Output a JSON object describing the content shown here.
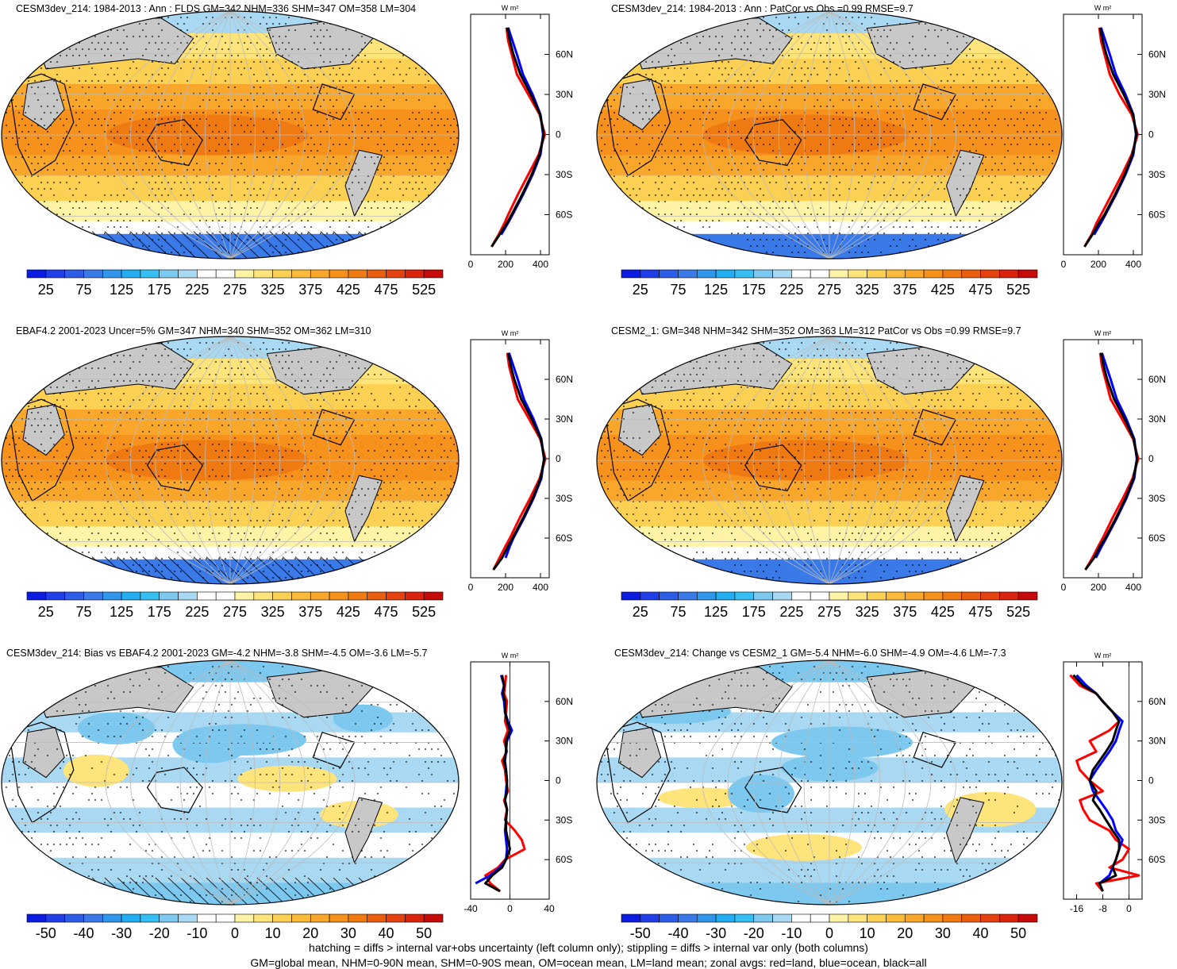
{
  "palettes": {
    "abs": [
      "#0b1be0",
      "#1f3ee8",
      "#2d5ce6",
      "#3a7ae8",
      "#2f96ec",
      "#22aef0",
      "#35bff2",
      "#7dc8ee",
      "#a9d8f2",
      "#ffffff",
      "#ffffff",
      "#fff3a6",
      "#fee47a",
      "#fcd052",
      "#fbbb3a",
      "#f9a72a",
      "#f6921c",
      "#f07a12",
      "#ea5e10",
      "#e4420e",
      "#d9230c",
      "#c50a0a"
    ],
    "diff": [
      "#0b1be0",
      "#1f3ee8",
      "#2d5ce6",
      "#3a7ae8",
      "#2f96ec",
      "#22aef0",
      "#35bff2",
      "#7dc8ee",
      "#a9d8f2",
      "#ffffff",
      "#ffffff",
      "#fff3a6",
      "#fee47a",
      "#fcd052",
      "#fbbb3a",
      "#f9a72a",
      "#f6921c",
      "#f07a12",
      "#ea5e10",
      "#e4420e",
      "#d9230c",
      "#c50a0a"
    ],
    "land_gray": "#c8c8c8",
    "coast": "#000000",
    "line_land": "#ff0000",
    "line_ocean": "#0000ff",
    "line_all": "#000000"
  },
  "colorbar_labels": {
    "abs": [
      "25",
      "75",
      "125",
      "175",
      "225",
      "275",
      "325",
      "375",
      "425",
      "475",
      "525"
    ],
    "diff": [
      "-50",
      "-40",
      "-30",
      "-20",
      "-10",
      "0",
      "10",
      "20",
      "30",
      "40",
      "50"
    ]
  },
  "profile_labels": {
    "units": "W m²",
    "lat": [
      "60N",
      "30N",
      "0",
      "30S",
      "60S"
    ]
  },
  "panels": [
    {
      "title": "CESM3dev_214: 1984-2013 : Ann : FLDS GM=342 NHM=336 SHM=347 OM=358 LM=304",
      "scale": "abs",
      "xticks": [
        "0",
        "200",
        "400"
      ],
      "hatch": true
    },
    {
      "title": "CESM3dev_214: 1984-2013 : Ann : PatCor vs Obs =0.99 RMSE=9.7",
      "scale": "abs",
      "xticks": [
        "0",
        "200",
        "400"
      ],
      "hatch": false
    },
    {
      "title": "EBAF4.2 2001-2023 Uncer=5% GM=347 NHM=340 SHM=352 OM=362 LM=310",
      "scale": "abs",
      "xticks": [
        "0",
        "200",
        "400"
      ],
      "hatch": true
    },
    {
      "title": "CESM2_1: GM=348 NHM=342 SHM=352 OM=363 LM=312 PatCor vs Obs =0.99 RMSE=9.7",
      "scale": "abs",
      "xticks": [
        "0",
        "200",
        "400"
      ],
      "hatch": false
    },
    {
      "title": "CESM3dev_214: Bias vs EBAF4.2 2001-2023 GM=-4.2 NHM=-3.8 SHM=-4.5 OM=-3.6 LM=-5.7",
      "scale": "diff",
      "xticks": [
        "-40",
        "0",
        "40"
      ],
      "hatch": true
    },
    {
      "title": "CESM3dev_214: Change vs CESM2_1 GM=-5.4 NHM=-6.0 SHM=-4.9 OM=-4.6 LM=-7.3",
      "scale": "diff",
      "xticks": [
        "-16",
        "-8",
        "0"
      ],
      "hatch": false
    }
  ],
  "chart_data": [
    {
      "type": "line",
      "title": "CESM3dev_214: 1984-2013 : Ann : FLDS GM=342 NHM=336 SHM=347 OM=358 LM=304",
      "xlim": [
        0,
        450
      ],
      "ylim": [
        -90,
        90
      ],
      "lat": [
        -84,
        -75,
        -66,
        -60,
        -45,
        -30,
        -15,
        0,
        15,
        30,
        45,
        60,
        70,
        80
      ],
      "series": [
        {
          "name": "land",
          "color": "#ff0000",
          "values": [
            120,
            160,
            195,
            215,
            270,
            330,
            390,
            425,
            395,
            330,
            265,
            235,
            215,
            205
          ]
        },
        {
          "name": "ocean",
          "color": "#0000ff",
          "values": [
            null,
            175,
            215,
            240,
            300,
            355,
            400,
            415,
            400,
            355,
            300,
            265,
            240,
            215
          ]
        },
        {
          "name": "all",
          "color": "#000000",
          "values": [
            120,
            165,
            210,
            235,
            295,
            350,
            395,
            418,
            398,
            345,
            285,
            245,
            225,
            210
          ]
        }
      ]
    },
    {
      "type": "line",
      "title": "CESM3dev_214: 1984-2013 : Ann : PatCor vs Obs =0.99 RMSE=9.7",
      "xlim": [
        0,
        450
      ],
      "ylim": [
        -90,
        90
      ],
      "lat": [
        -84,
        -75,
        -66,
        -60,
        -45,
        -30,
        -15,
        0,
        15,
        30,
        45,
        60,
        70,
        80
      ],
      "series": [
        {
          "name": "land",
          "color": "#ff0000",
          "values": [
            120,
            160,
            190,
            215,
            275,
            335,
            390,
            425,
            390,
            320,
            265,
            235,
            215,
            205
          ]
        },
        {
          "name": "ocean",
          "color": "#0000ff",
          "values": [
            null,
            175,
            215,
            240,
            300,
            355,
            400,
            415,
            400,
            355,
            300,
            265,
            240,
            215
          ]
        },
        {
          "name": "all",
          "color": "#000000",
          "values": [
            120,
            165,
            205,
            235,
            295,
            350,
            395,
            418,
            398,
            345,
            285,
            245,
            225,
            210
          ]
        }
      ]
    },
    {
      "type": "line",
      "title": "EBAF4.2 2001-2023 Uncer=5% GM=347 NHM=340 SHM=352 OM=362 LM=310",
      "xlim": [
        0,
        450
      ],
      "ylim": [
        -90,
        90
      ],
      "lat": [
        -84,
        -75,
        -66,
        -60,
        -45,
        -30,
        -15,
        0,
        15,
        30,
        45,
        60,
        70,
        80
      ],
      "series": [
        {
          "name": "land",
          "color": "#ff0000",
          "values": [
            130,
            165,
            200,
            225,
            280,
            340,
            395,
            428,
            398,
            335,
            270,
            240,
            220,
            210
          ]
        },
        {
          "name": "ocean",
          "color": "#0000ff",
          "values": [
            null,
            200,
            225,
            245,
            305,
            360,
            405,
            420,
            405,
            360,
            305,
            270,
            245,
            220
          ]
        },
        {
          "name": "all",
          "color": "#000000",
          "values": [
            130,
            180,
            215,
            240,
            300,
            355,
            400,
            422,
            402,
            350,
            290,
            250,
            230,
            215
          ]
        }
      ]
    },
    {
      "type": "line",
      "title": "CESM2_1: GM=348 NHM=342 SHM=352 OM=363 LM=312 PatCor vs Obs =0.99 RMSE=9.7",
      "xlim": [
        0,
        450
      ],
      "ylim": [
        -90,
        90
      ],
      "lat": [
        -84,
        -75,
        -66,
        -60,
        -45,
        -30,
        -15,
        0,
        15,
        30,
        45,
        60,
        70,
        80
      ],
      "series": [
        {
          "name": "land",
          "color": "#ff0000",
          "values": [
            125,
            165,
            200,
            225,
            280,
            340,
            395,
            428,
            398,
            335,
            270,
            240,
            220,
            210
          ]
        },
        {
          "name": "ocean",
          "color": "#0000ff",
          "values": [
            null,
            185,
            220,
            245,
            305,
            360,
            405,
            420,
            405,
            360,
            305,
            270,
            245,
            220
          ]
        },
        {
          "name": "all",
          "color": "#000000",
          "values": [
            125,
            175,
            210,
            240,
            300,
            355,
            400,
            422,
            402,
            350,
            290,
            250,
            230,
            215
          ]
        }
      ]
    },
    {
      "type": "line",
      "title": "CESM3dev_214: Bias vs EBAF4.2 2001-2023 GM=-4.2 NHM=-3.8 SHM=-4.5 OM=-3.6 LM=-5.7",
      "xlim": [
        -40,
        40
      ],
      "ylim": [
        -90,
        90
      ],
      "lat": [
        -84,
        -78,
        -72,
        -66,
        -60,
        -52,
        -45,
        -38,
        -30,
        -22,
        -15,
        -8,
        0,
        8,
        15,
        22,
        30,
        38,
        45,
        52,
        60,
        66,
        72,
        80
      ],
      "series": [
        {
          "name": "land",
          "color": "#ff0000",
          "values": [
            -10,
            -20,
            -25,
            -12,
            -5,
            15,
            12,
            5,
            -5,
            -3,
            -6,
            -2,
            -4,
            -5,
            -8,
            -3,
            -6,
            -2,
            -5,
            -4,
            -3,
            -6,
            -5,
            -4
          ]
        },
        {
          "name": "ocean",
          "color": "#0000ff",
          "values": [
            null,
            -35,
            -20,
            -10,
            -4,
            -3,
            -4,
            -5,
            -4,
            -3,
            -5,
            -4,
            -3,
            -4,
            -5,
            -4,
            -3,
            2,
            -2,
            -5,
            -6,
            -8,
            -6,
            -9
          ]
        },
        {
          "name": "all",
          "color": "#000000",
          "values": [
            -10,
            -25,
            -18,
            -8,
            -4,
            0,
            -2,
            -4,
            -4,
            -3,
            -5,
            -3,
            -3,
            -4,
            -6,
            -4,
            -4,
            0,
            -3,
            -5,
            -5,
            -7,
            -6,
            -8
          ]
        }
      ]
    },
    {
      "type": "line",
      "title": "CESM3dev_214: Change vs CESM2_1 GM=-5.4 NHM=-6.0 SHM=-4.9 OM=-4.6 LM=-7.3",
      "xlim": [
        -20,
        4
      ],
      "ylim": [
        -90,
        90
      ],
      "lat": [
        -84,
        -78,
        -72,
        -66,
        -60,
        -52,
        -45,
        -38,
        -30,
        -22,
        -15,
        -8,
        0,
        8,
        15,
        22,
        30,
        38,
        45,
        52,
        60,
        66,
        72,
        80
      ],
      "series": [
        {
          "name": "land",
          "color": "#ff0000",
          "values": [
            -8,
            -10,
            3,
            -6,
            -2,
            0,
            -4,
            -6,
            -12,
            -14,
            -15,
            -8,
            -12,
            -15,
            -16,
            -10,
            -12,
            -6,
            -3,
            -5,
            -8,
            -10,
            -15,
            -18
          ]
        },
        {
          "name": "ocean",
          "color": "#0000ff",
          "values": [
            null,
            -9,
            -6,
            -5,
            -4,
            -3,
            -2,
            -4,
            -5,
            -7,
            -9,
            -11,
            -12,
            -10,
            -8,
            -6,
            -4,
            -3,
            -2,
            -5,
            -8,
            -10,
            -13,
            -16
          ]
        },
        {
          "name": "all",
          "color": "#000000",
          "values": [
            -8,
            -9,
            -4,
            -5,
            -4,
            -3,
            -3,
            -5,
            -7,
            -9,
            -11,
            -10,
            -12,
            -11,
            -9,
            -7,
            -5,
            -4,
            -3,
            -5,
            -8,
            -10,
            -14,
            -17
          ]
        }
      ]
    }
  ],
  "footer": {
    "line1": "hatching = diffs > internal var+obs uncertainty (left column only); stippling = diffs > internal var only (both columns)",
    "line2": "GM=global mean, NHM=0-90N mean, SHM=0-90S mean, OM=ocean mean, LM=land mean; zonal avgs: red=land, blue=ocean, black=all"
  }
}
